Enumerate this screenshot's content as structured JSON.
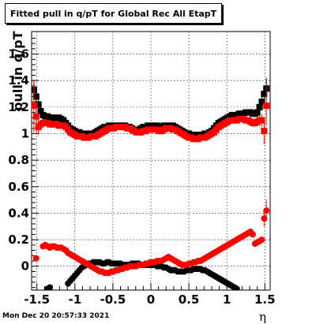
{
  "chart_data": {
    "type": "scatter",
    "title": "Fitted pull in q/pT for Global Rec All EtapT",
    "xlabel": "η",
    "ylabel": "pull in q/pT",
    "xlim": [
      -1.57,
      1.57
    ],
    "ylim": [
      -0.18,
      1.77
    ],
    "x_ticks": [
      "-1.5",
      "-1",
      "-0.5",
      "0",
      "0.5",
      "1",
      "1.5"
    ],
    "x_tick_values": [
      -1.5,
      -1,
      -0.5,
      0,
      0.5,
      1,
      1.5
    ],
    "y_ticks": [
      "0",
      "0.2",
      "0.4",
      "0.6",
      "0.8",
      "1",
      "1.2",
      "1.4",
      "1.6"
    ],
    "y_tick_values": [
      0,
      0.2,
      0.4,
      0.6,
      0.8,
      1.0,
      1.2,
      1.4,
      1.6
    ],
    "grid": true,
    "series": [
      {
        "name": "",
        "color": "#000000",
        "marker": "square",
        "x": [
          -1.54,
          -1.51,
          -1.48,
          -1.45,
          -1.42,
          -1.39,
          -1.36,
          -1.33,
          -1.3,
          -1.27,
          -1.24,
          -1.21,
          -1.18,
          -1.15,
          -1.12,
          -1.09,
          -1.06,
          -1.03,
          -1.0,
          -0.97,
          -0.94,
          -0.91,
          -0.88,
          -0.85,
          -0.82,
          -0.79,
          -0.76,
          -0.73,
          -0.7,
          -0.67,
          -0.64,
          -0.61,
          -0.58,
          -0.55,
          -0.52,
          -0.49,
          -0.46,
          -0.43,
          -0.4,
          -0.37,
          -0.34,
          -0.31,
          -0.28,
          -0.25,
          -0.22,
          -0.19,
          -0.16,
          -0.13,
          -0.1,
          -0.07,
          -0.04,
          -0.01,
          0.02,
          0.05,
          0.08,
          0.11,
          0.14,
          0.17,
          0.2,
          0.23,
          0.26,
          0.29,
          0.32,
          0.35,
          0.38,
          0.41,
          0.44,
          0.47,
          0.5,
          0.53,
          0.56,
          0.59,
          0.62,
          0.65,
          0.68,
          0.71,
          0.74,
          0.77,
          0.8,
          0.83,
          0.86,
          0.89,
          0.92,
          0.95,
          0.98,
          1.01,
          1.04,
          1.07,
          1.1,
          1.13,
          1.16,
          1.19,
          1.22,
          1.25,
          1.28,
          1.31,
          1.34,
          1.37,
          1.4,
          1.43,
          1.46,
          1.49,
          1.52
        ],
        "y": [
          1.33,
          1.28,
          1.22,
          1.17,
          1.14,
          1.13,
          1.13,
          1.12,
          1.12,
          1.12,
          1.12,
          1.12,
          1.11,
          1.1,
          1.08,
          1.06,
          1.04,
          1.03,
          1.02,
          1.01,
          1.01,
          1.0,
          1.0,
          1.0,
          1.0,
          1.0,
          1.0,
          1.01,
          1.02,
          1.03,
          1.04,
          1.05,
          1.05,
          1.06,
          1.06,
          1.06,
          1.06,
          1.06,
          1.06,
          1.06,
          1.06,
          1.05,
          1.05,
          1.04,
          1.03,
          1.03,
          1.03,
          1.04,
          1.05,
          1.05,
          1.06,
          1.06,
          1.06,
          1.06,
          1.06,
          1.05,
          1.05,
          1.06,
          1.06,
          1.06,
          1.06,
          1.06,
          1.05,
          1.04,
          1.03,
          1.02,
          1.01,
          1.0,
          1.0,
          0.99,
          0.99,
          0.99,
          0.99,
          0.99,
          0.99,
          1.0,
          1.0,
          1.01,
          1.02,
          1.04,
          1.06,
          1.08,
          1.09,
          1.1,
          1.11,
          1.12,
          1.13,
          1.14,
          1.14,
          1.14,
          1.15,
          1.15,
          1.15,
          1.16,
          1.16,
          1.16,
          1.15,
          1.15,
          1.16,
          1.2,
          1.24,
          1.3,
          1.34
        ],
        "err": [
          0.07,
          0.05,
          0.04,
          0.03,
          0.02,
          0.02,
          0.02,
          0.02,
          0.02,
          0.02,
          0.02,
          0.02,
          0.02,
          0.02,
          0.02,
          0.02,
          0.02,
          0.02,
          0.02,
          0.02,
          0.02,
          0.02,
          0.02,
          0.02,
          0.02,
          0.02,
          0.02,
          0.02,
          0.02,
          0.02,
          0.02,
          0.02,
          0.02,
          0.02,
          0.02,
          0.02,
          0.02,
          0.02,
          0.02,
          0.02,
          0.02,
          0.02,
          0.02,
          0.02,
          0.02,
          0.02,
          0.02,
          0.02,
          0.02,
          0.02,
          0.02,
          0.02,
          0.02,
          0.02,
          0.02,
          0.02,
          0.02,
          0.02,
          0.02,
          0.02,
          0.02,
          0.02,
          0.02,
          0.02,
          0.02,
          0.02,
          0.02,
          0.02,
          0.02,
          0.02,
          0.02,
          0.02,
          0.02,
          0.02,
          0.02,
          0.02,
          0.02,
          0.02,
          0.02,
          0.02,
          0.02,
          0.02,
          0.02,
          0.02,
          0.02,
          0.02,
          0.02,
          0.02,
          0.02,
          0.02,
          0.02,
          0.02,
          0.02,
          0.02,
          0.02,
          0.02,
          0.02,
          0.02,
          0.03,
          0.04,
          0.05,
          0.06,
          0.08
        ]
      },
      {
        "name": "",
        "color": "#ff0000",
        "marker": "square",
        "x": [
          -1.54,
          -1.51,
          -1.48,
          -1.45,
          -1.42,
          -1.39,
          -1.36,
          -1.33,
          -1.3,
          -1.27,
          -1.24,
          -1.21,
          -1.18,
          -1.15,
          -1.12,
          -1.09,
          -1.06,
          -1.03,
          -1.0,
          -0.97,
          -0.94,
          -0.91,
          -0.88,
          -0.85,
          -0.82,
          -0.79,
          -0.76,
          -0.73,
          -0.7,
          -0.67,
          -0.64,
          -0.61,
          -0.58,
          -0.55,
          -0.52,
          -0.49,
          -0.46,
          -0.43,
          -0.4,
          -0.37,
          -0.34,
          -0.31,
          -0.28,
          -0.25,
          -0.22,
          -0.19,
          -0.16,
          -0.13,
          -0.1,
          -0.07,
          -0.04,
          -0.01,
          0.02,
          0.05,
          0.08,
          0.11,
          0.14,
          0.17,
          0.2,
          0.23,
          0.26,
          0.29,
          0.32,
          0.35,
          0.38,
          0.41,
          0.44,
          0.47,
          0.5,
          0.53,
          0.56,
          0.59,
          0.62,
          0.65,
          0.68,
          0.71,
          0.74,
          0.77,
          0.8,
          0.83,
          0.86,
          0.89,
          0.92,
          0.95,
          0.98,
          1.01,
          1.04,
          1.07,
          1.1,
          1.13,
          1.16,
          1.19,
          1.22,
          1.25,
          1.28,
          1.31,
          1.34,
          1.37,
          1.4,
          1.43,
          1.46,
          1.49,
          1.52
        ],
        "y": [
          1.21,
          1.13,
          1.05,
          1.07,
          1.08,
          1.08,
          1.08,
          1.07,
          1.07,
          1.07,
          1.07,
          1.06,
          1.06,
          1.06,
          1.05,
          1.03,
          1.01,
          1.0,
          0.99,
          0.98,
          0.98,
          0.98,
          0.97,
          0.97,
          0.97,
          0.98,
          0.98,
          0.98,
          0.99,
          1.0,
          1.01,
          1.02,
          1.03,
          1.04,
          1.04,
          1.04,
          1.05,
          1.05,
          1.05,
          1.05,
          1.05,
          1.04,
          1.04,
          1.03,
          1.02,
          1.01,
          1.01,
          1.01,
          1.02,
          1.02,
          1.03,
          1.03,
          1.03,
          1.03,
          1.03,
          1.02,
          1.02,
          1.03,
          1.04,
          1.04,
          1.04,
          1.03,
          1.03,
          1.02,
          1.01,
          1.0,
          0.99,
          0.98,
          0.97,
          0.97,
          0.96,
          0.96,
          0.96,
          0.97,
          0.97,
          0.97,
          0.98,
          0.99,
          1.0,
          1.01,
          1.03,
          1.05,
          1.06,
          1.07,
          1.08,
          1.09,
          1.1,
          1.1,
          1.1,
          1.1,
          1.11,
          1.11,
          1.11,
          1.1,
          1.1,
          1.09,
          1.08,
          1.08,
          1.09,
          1.1,
          1.1,
          1.02,
          1.21
        ],
        "err": [
          0.2,
          0.12,
          0.06,
          0.03,
          0.02,
          0.02,
          0.02,
          0.02,
          0.02,
          0.02,
          0.02,
          0.02,
          0.02,
          0.02,
          0.02,
          0.02,
          0.02,
          0.02,
          0.02,
          0.02,
          0.02,
          0.02,
          0.02,
          0.02,
          0.02,
          0.02,
          0.02,
          0.02,
          0.02,
          0.02,
          0.02,
          0.02,
          0.02,
          0.02,
          0.02,
          0.02,
          0.02,
          0.02,
          0.02,
          0.02,
          0.02,
          0.02,
          0.02,
          0.02,
          0.02,
          0.02,
          0.02,
          0.02,
          0.02,
          0.02,
          0.02,
          0.02,
          0.02,
          0.02,
          0.02,
          0.02,
          0.02,
          0.02,
          0.02,
          0.02,
          0.02,
          0.02,
          0.02,
          0.02,
          0.02,
          0.02,
          0.02,
          0.02,
          0.02,
          0.02,
          0.02,
          0.02,
          0.02,
          0.02,
          0.02,
          0.02,
          0.02,
          0.02,
          0.02,
          0.02,
          0.02,
          0.02,
          0.02,
          0.02,
          0.02,
          0.02,
          0.02,
          0.02,
          0.02,
          0.02,
          0.02,
          0.02,
          0.02,
          0.02,
          0.02,
          0.02,
          0.03,
          0.03,
          0.03,
          0.04,
          0.05,
          0.1,
          0.15
        ]
      },
      {
        "name": "",
        "color": "#000000",
        "marker": "circle",
        "x": [
          -1.36,
          -1.33,
          -1.09,
          -1.06,
          -1.03,
          -1.0,
          -0.97,
          -0.94,
          -0.91,
          -0.88,
          -0.85,
          -0.82,
          -0.79,
          -0.76,
          -0.73,
          -0.7,
          -0.67,
          -0.64,
          -0.61,
          -0.58,
          -0.55,
          -0.52,
          -0.49,
          -0.46,
          -0.43,
          -0.4,
          -0.37,
          -0.34,
          -0.31,
          -0.28,
          -0.25,
          -0.22,
          -0.19,
          -0.16,
          -0.13,
          -0.1,
          -0.07,
          -0.04,
          -0.01,
          0.02,
          0.05,
          0.08,
          0.11,
          0.14,
          0.17,
          0.2,
          0.23,
          0.26,
          0.29,
          0.32,
          0.35,
          0.38,
          0.41,
          0.44,
          0.47,
          0.5,
          0.53,
          0.56,
          0.59,
          0.62,
          0.65,
          0.68,
          0.71,
          0.74,
          0.77,
          0.8,
          0.83,
          0.86,
          0.89,
          0.92,
          0.95,
          0.98,
          1.01,
          1.04,
          1.07,
          1.1,
          1.13
        ],
        "y": [
          -0.17,
          -0.16,
          -0.13,
          -0.11,
          -0.09,
          -0.07,
          -0.05,
          -0.03,
          -0.01,
          0.0,
          0.01,
          0.02,
          0.02,
          0.03,
          0.03,
          0.03,
          0.03,
          0.02,
          0.02,
          0.03,
          0.03,
          0.02,
          0.02,
          0.02,
          0.02,
          0.02,
          0.01,
          0.01,
          0.01,
          0.01,
          0.02,
          0.02,
          0.02,
          0.02,
          0.01,
          0.01,
          0.01,
          0.01,
          0.01,
          0.01,
          0.01,
          0.0,
          0.0,
          0.0,
          -0.01,
          -0.01,
          -0.02,
          -0.03,
          -0.03,
          -0.03,
          -0.04,
          -0.04,
          -0.04,
          -0.04,
          -0.03,
          -0.03,
          -0.03,
          -0.02,
          -0.02,
          -0.02,
          -0.02,
          -0.03,
          -0.03,
          -0.04,
          -0.05,
          -0.06,
          -0.07,
          -0.08,
          -0.09,
          -0.1,
          -0.11,
          -0.12,
          -0.13,
          -0.14,
          -0.15,
          -0.16,
          -0.17
        ],
        "err": []
      },
      {
        "name": "",
        "color": "#ff0000",
        "marker": "circle",
        "x": [
          -1.51,
          -1.42,
          -1.39,
          -1.36,
          -1.33,
          -1.3,
          -1.27,
          -1.24,
          -1.21,
          -1.18,
          -1.15,
          -1.12,
          -1.09,
          -1.06,
          -1.03,
          -1.0,
          -0.97,
          -0.94,
          -0.91,
          -0.88,
          -0.85,
          -0.82,
          -0.79,
          -0.76,
          -0.73,
          -0.7,
          -0.67,
          -0.64,
          -0.61,
          -0.58,
          -0.55,
          -0.52,
          -0.49,
          -0.46,
          -0.43,
          -0.4,
          -0.37,
          -0.34,
          -0.31,
          -0.28,
          -0.25,
          -0.22,
          -0.19,
          -0.16,
          -0.13,
          -0.1,
          -0.07,
          -0.04,
          -0.01,
          0.02,
          0.05,
          0.08,
          0.11,
          0.14,
          0.17,
          0.2,
          0.23,
          0.26,
          0.29,
          0.32,
          0.35,
          0.38,
          0.41,
          0.44,
          0.47,
          0.5,
          0.53,
          0.56,
          0.59,
          0.62,
          0.65,
          0.68,
          0.71,
          0.74,
          0.77,
          0.8,
          0.83,
          0.86,
          0.89,
          0.92,
          0.95,
          0.98,
          1.01,
          1.04,
          1.07,
          1.1,
          1.13,
          1.16,
          1.19,
          1.22,
          1.25,
          1.28,
          1.31,
          1.34,
          1.37,
          1.4,
          1.43,
          1.46,
          1.49,
          1.52
        ],
        "y": [
          0.06,
          0.15,
          0.16,
          0.15,
          0.14,
          0.15,
          0.15,
          0.14,
          0.14,
          0.14,
          0.13,
          0.12,
          0.1,
          0.09,
          0.08,
          0.07,
          0.06,
          0.05,
          0.04,
          0.03,
          0.02,
          0.01,
          0.0,
          -0.01,
          -0.02,
          -0.03,
          -0.04,
          -0.04,
          -0.05,
          -0.05,
          -0.05,
          -0.04,
          -0.04,
          -0.03,
          -0.03,
          -0.02,
          -0.02,
          -0.01,
          -0.01,
          0.0,
          0.0,
          0.0,
          0.0,
          0.01,
          0.01,
          0.01,
          0.02,
          0.02,
          0.03,
          0.03,
          0.03,
          0.04,
          0.04,
          0.04,
          0.05,
          0.06,
          0.07,
          0.06,
          0.05,
          0.04,
          0.03,
          0.02,
          0.01,
          0.01,
          0.01,
          0.02,
          0.02,
          0.03,
          0.03,
          0.04,
          0.04,
          0.05,
          0.06,
          0.07,
          0.08,
          0.09,
          0.1,
          0.11,
          0.12,
          0.13,
          0.14,
          0.15,
          0.16,
          0.17,
          0.18,
          0.19,
          0.2,
          0.21,
          0.22,
          0.23,
          0.24,
          0.25,
          0.26,
          0.24,
          0.17,
          0.18,
          0.19,
          0.2,
          0.36,
          0.42
        ],
        "err": [
          0.0,
          0.02,
          0.02,
          0.02,
          0.02,
          0.02,
          0.02,
          0.02,
          0.02,
          0.02,
          0.02,
          0.02,
          0.02,
          0.02,
          0.02,
          0.02,
          0.02,
          0.02,
          0.02,
          0.02,
          0.02,
          0.02,
          0.02,
          0.02,
          0.02,
          0.02,
          0.02,
          0.02,
          0.02,
          0.02,
          0.02,
          0.02,
          0.02,
          0.02,
          0.02,
          0.02,
          0.02,
          0.02,
          0.02,
          0.02,
          0.02,
          0.02,
          0.02,
          0.02,
          0.02,
          0.02,
          0.02,
          0.02,
          0.02,
          0.02,
          0.02,
          0.02,
          0.02,
          0.02,
          0.02,
          0.02,
          0.02,
          0.02,
          0.02,
          0.02,
          0.02,
          0.02,
          0.02,
          0.02,
          0.02,
          0.02,
          0.02,
          0.02,
          0.02,
          0.02,
          0.02,
          0.02,
          0.02,
          0.02,
          0.02,
          0.02,
          0.02,
          0.02,
          0.02,
          0.02,
          0.02,
          0.02,
          0.02,
          0.02,
          0.02,
          0.02,
          0.02,
          0.02,
          0.02,
          0.02,
          0.02,
          0.02,
          0.02,
          0.02,
          0.02,
          0.02,
          0.02,
          0.02,
          0.06,
          0.08
        ]
      }
    ]
  },
  "page": {
    "timestamp": "Mon Dec 20 20:57:33 2021"
  }
}
